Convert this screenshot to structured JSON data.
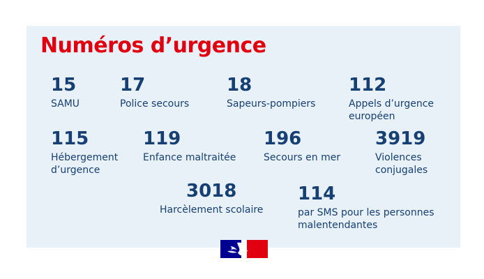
{
  "title": "Numéros d’urgence",
  "entries": [
    {
      "number": "15",
      "label": "SAMU"
    },
    {
      "number": "17",
      "label": "Police secours"
    },
    {
      "number": "18",
      "label": "Sapeurs-pompiers"
    },
    {
      "number": "112",
      "label": "Appels d’urgence\neuropéen"
    },
    {
      "number": "115",
      "label": "Hébergement\nd’urgence"
    },
    {
      "number": "119",
      "label": "Enfance maltraitée"
    },
    {
      "number": "196",
      "label": "Secours en mer"
    },
    {
      "number": "3919",
      "label": "Violences\nconjugales"
    },
    {
      "number": "3018",
      "label": "Harcèlement scolaire"
    },
    {
      "number": "114",
      "label": "par SMS pour les personnes\nmalentendantes"
    }
  ],
  "colors": {
    "title": "#e1000f",
    "text": "#163f73",
    "card_background": "#e8f1f7",
    "flag_blue": "#000091",
    "flag_red": "#e1000f"
  },
  "icons": {
    "logo": "marianne-republique-francaise-logo"
  }
}
